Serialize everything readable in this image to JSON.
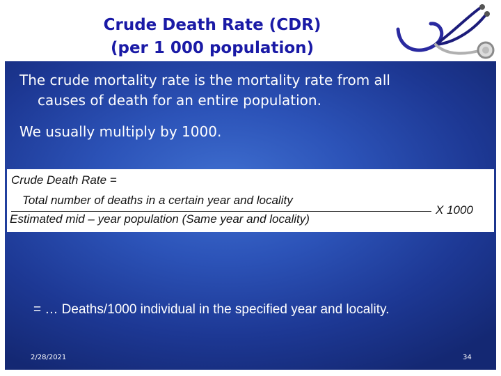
{
  "slide": {
    "title_line1": "Crude Death Rate (CDR)",
    "title_line2": "(per 1 000 population)",
    "bullet1_line1": "The crude mortality rate is the mortality rate from all",
    "bullet1_line2": "causes of death for an entire population.",
    "bullet2": "We usually multiply by 1000.",
    "formula": {
      "lhs": "Crude Death Rate =",
      "numerator": "Total  number of deaths in a certain year and locality",
      "denominator": "Estimated mid – year population (Same year and locality)",
      "multiplier": "X 1000"
    },
    "result": "= … Deaths/1000 individual in the specified year and locality.",
    "footer_date": "2/28/2021",
    "page_number": "34"
  },
  "colors": {
    "title": "#1a1aa6",
    "panel_center": "#3f6fd0",
    "panel_edge": "#142873",
    "text": "#ffffff"
  },
  "icons": [
    "stethoscope-icon"
  ]
}
